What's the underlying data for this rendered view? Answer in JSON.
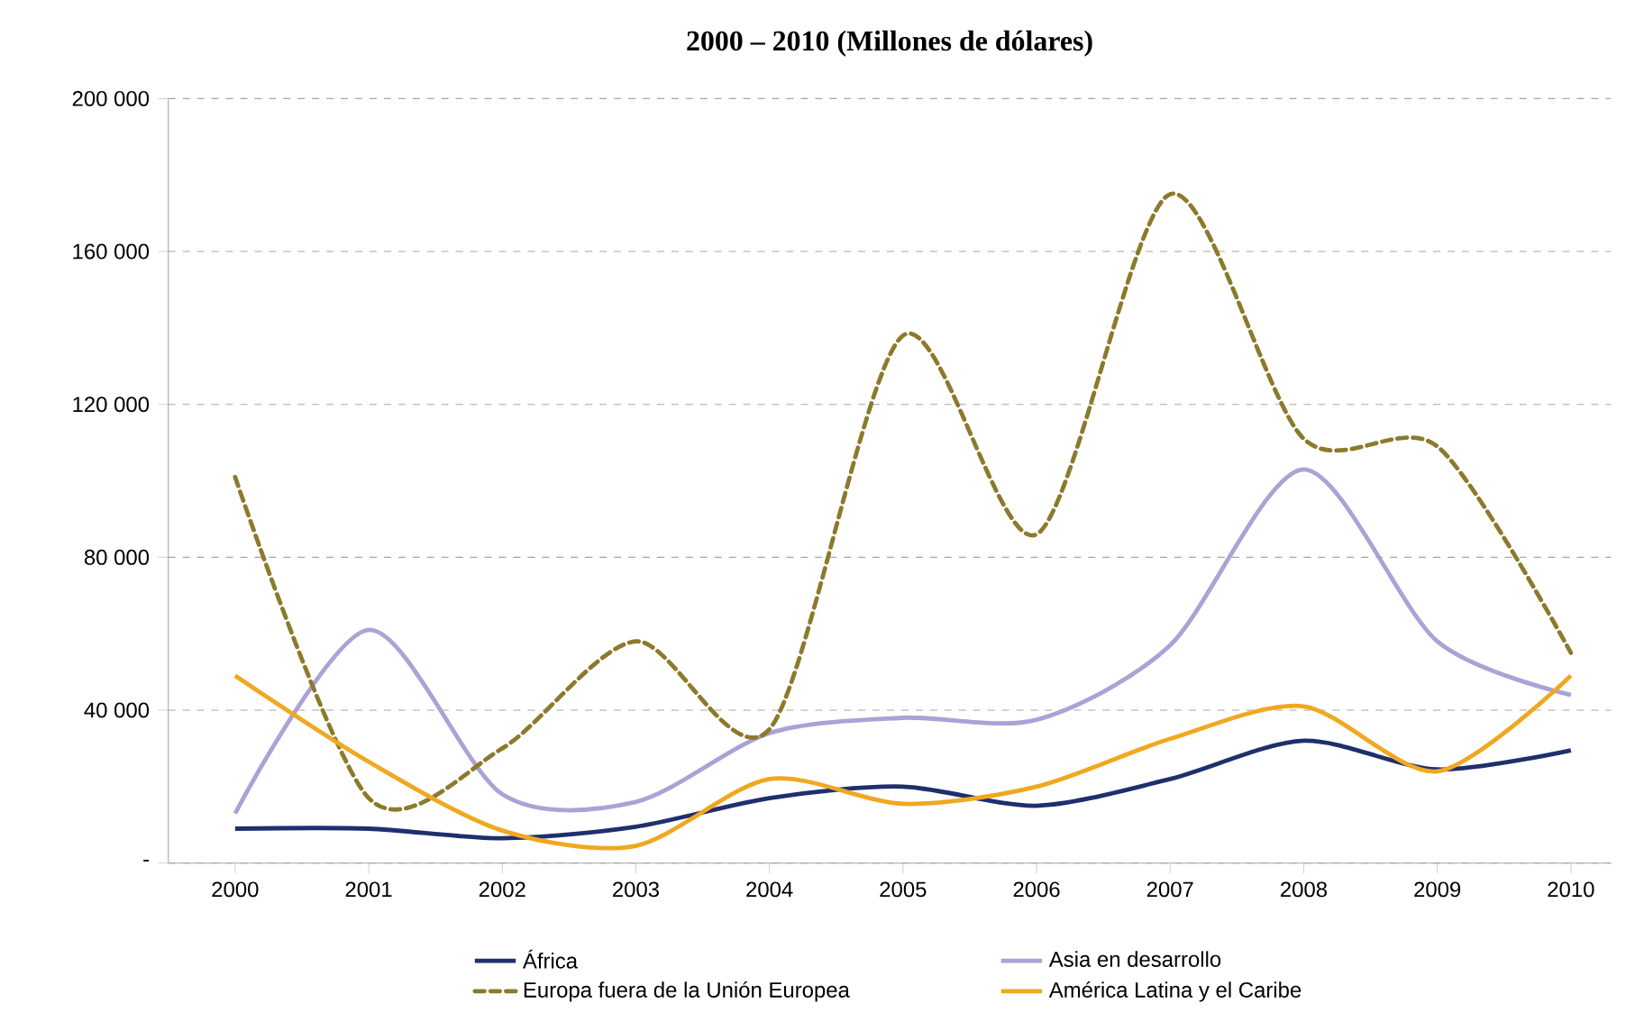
{
  "chart_data": {
    "type": "line",
    "title": "2000 – 2010 (Millones de dólares)",
    "x": [
      2000,
      2001,
      2002,
      2003,
      2004,
      2005,
      2006,
      2007,
      2008,
      2009,
      2010
    ],
    "xlim": [
      1999.5,
      2010.3
    ],
    "xticks": [
      2000,
      2001,
      2002,
      2003,
      2004,
      2005,
      2006,
      2007,
      2008,
      2009,
      2010
    ],
    "ylim": [
      0,
      200000
    ],
    "yticks": [
      {
        "value": 0,
        "label": "-"
      },
      {
        "value": 40000,
        "label": "40 000"
      },
      {
        "value": 80000,
        "label": "80 000"
      },
      {
        "value": 120000,
        "label": "120 000"
      },
      {
        "value": 160000,
        "label": "160 000"
      },
      {
        "value": 200000,
        "label": "200 000"
      }
    ],
    "grid": "y",
    "legend": "bottom",
    "marker": "none",
    "series": [
      {
        "name": "África",
        "color": "#1f2f6e",
        "line_style": "solid",
        "values": [
          9000,
          9000,
          6500,
          9500,
          17000,
          20000,
          15000,
          22000,
          32000,
          24500,
          29500
        ]
      },
      {
        "name": "Asia en desarrollo",
        "color": "#a9a3d6",
        "line_style": "solid",
        "values": [
          13000,
          61000,
          18000,
          16000,
          34000,
          38000,
          37500,
          57000,
          103000,
          58000,
          44000
        ]
      },
      {
        "name": "Europa fuera de la Unión Europea",
        "color": "#8c7a2c",
        "line_style": "dashed",
        "values": [
          101000,
          17000,
          30000,
          58000,
          35000,
          138000,
          86000,
          175000,
          111000,
          109000,
          55000
        ]
      },
      {
        "name": "América Latina y el Caribe",
        "color": "#f0a820",
        "line_style": "solid",
        "values": [
          49000,
          26500,
          8500,
          4500,
          22000,
          15500,
          20000,
          32500,
          41000,
          24000,
          49000
        ]
      }
    ]
  }
}
